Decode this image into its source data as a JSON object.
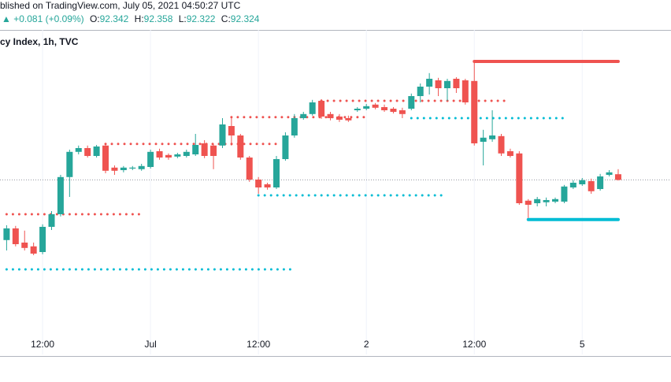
{
  "header": {
    "source": "blished on TradingView.com, July 05, 2021 04:50:27 UTC",
    "change": "▲ +0.081 (+0.09%)",
    "ohlc": [
      {
        "label": "O:",
        "value": "92.342"
      },
      {
        "label": "H:",
        "value": "92.358"
      },
      {
        "label": "L:",
        "value": "92.322"
      },
      {
        "label": "C:",
        "value": "92.324"
      }
    ]
  },
  "chart_data": {
    "type": "candlestick",
    "title": "cy Index, 1h, TVC",
    "up_color": "#26a69a",
    "down_color": "#ef5350",
    "ylim": [
      91.77,
      92.8
    ],
    "categories": [
      null,
      null,
      null,
      null,
      "12:00",
      null,
      null,
      null,
      null,
      null,
      null,
      null,
      null,
      null,
      null,
      null,
      "Jul",
      null,
      null,
      null,
      null,
      null,
      null,
      null,
      null,
      null,
      null,
      null,
      "12:00",
      null,
      null,
      null,
      null,
      null,
      null,
      null,
      null,
      null,
      null,
      null,
      "2",
      null,
      null,
      null,
      null,
      null,
      null,
      null,
      null,
      null,
      null,
      null,
      "12:00",
      null,
      null,
      null,
      null,
      null,
      null,
      null,
      null,
      null,
      null,
      null,
      "5",
      null,
      null,
      null,
      null
    ],
    "open": [
      92.133,
      92.17,
      92.125,
      92.113,
      92.095,
      92.175,
      92.215,
      92.333,
      92.413,
      92.425,
      92.4,
      92.433,
      92.363,
      92.355,
      92.36,
      92.358,
      92.365,
      92.415,
      92.403,
      92.398,
      92.4,
      92.405,
      92.44,
      92.433,
      92.433,
      92.495,
      92.465,
      92.395,
      92.325,
      92.31,
      92.3,
      92.39,
      92.465,
      92.52,
      92.533,
      92.575,
      92.533,
      92.525,
      92.52,
      92.545,
      92.55,
      92.563,
      92.555,
      92.55,
      92.545,
      92.55,
      92.59,
      92.62,
      92.64,
      92.615,
      92.645,
      92.64,
      92.638,
      92.445,
      92.453,
      92.463,
      92.415,
      92.408,
      92.258,
      92.25,
      92.253,
      92.255,
      92.255,
      92.3,
      92.31,
      92.32,
      92.295,
      92.34,
      92.342
    ],
    "high": [
      92.18,
      92.178,
      92.163,
      92.125,
      92.183,
      92.225,
      92.34,
      92.42,
      92.433,
      92.433,
      92.435,
      92.44,
      92.37,
      92.368,
      92.368,
      92.375,
      92.42,
      92.423,
      92.408,
      92.41,
      92.42,
      92.47,
      92.45,
      92.438,
      92.52,
      92.525,
      92.47,
      92.4,
      92.333,
      92.315,
      92.4,
      92.475,
      92.533,
      92.54,
      92.578,
      92.58,
      92.54,
      92.533,
      92.528,
      92.555,
      92.565,
      92.568,
      92.563,
      92.555,
      92.553,
      92.598,
      92.63,
      92.663,
      92.648,
      92.645,
      92.65,
      92.645,
      92.7,
      92.483,
      92.545,
      92.47,
      92.423,
      92.415,
      92.263,
      92.27,
      92.268,
      92.268,
      92.308,
      92.323,
      92.33,
      92.328,
      92.343,
      92.355,
      92.358
    ],
    "low": [
      92.1,
      92.113,
      92.1,
      92.085,
      92.088,
      92.165,
      92.208,
      92.27,
      92.405,
      92.395,
      92.395,
      92.345,
      92.34,
      92.348,
      92.355,
      92.353,
      92.36,
      92.388,
      92.388,
      92.393,
      92.395,
      92.4,
      92.393,
      92.358,
      92.425,
      92.433,
      92.388,
      92.318,
      92.28,
      92.293,
      92.295,
      92.385,
      92.458,
      92.515,
      92.528,
      92.518,
      92.513,
      92.508,
      92.508,
      92.54,
      92.545,
      92.548,
      92.54,
      92.535,
      92.52,
      92.545,
      92.57,
      92.595,
      92.59,
      92.575,
      92.6,
      92.563,
      92.433,
      92.37,
      92.445,
      92.4,
      92.395,
      92.245,
      92.203,
      92.24,
      92.24,
      92.25,
      92.25,
      92.295,
      92.305,
      92.28,
      92.29,
      92.335,
      92.322
    ],
    "close": [
      92.17,
      92.12,
      92.108,
      92.09,
      92.175,
      92.215,
      92.333,
      92.413,
      92.425,
      92.4,
      92.43,
      92.353,
      92.353,
      92.363,
      92.363,
      92.368,
      92.413,
      92.395,
      92.395,
      92.405,
      92.413,
      92.435,
      92.4,
      92.4,
      92.5,
      92.465,
      92.395,
      92.325,
      92.3,
      92.3,
      92.39,
      92.465,
      92.52,
      92.533,
      92.57,
      92.525,
      92.52,
      92.515,
      92.513,
      92.55,
      92.558,
      92.553,
      92.545,
      92.54,
      92.533,
      92.59,
      92.62,
      92.645,
      92.615,
      92.638,
      92.615,
      92.57,
      92.44,
      92.458,
      92.465,
      92.408,
      92.4,
      92.25,
      92.245,
      92.263,
      92.26,
      92.263,
      92.303,
      92.315,
      92.323,
      92.288,
      92.335,
      92.348,
      92.324
    ],
    "levels": [
      {
        "value": 92.215,
        "color": "#ef5350",
        "style": "dotted",
        "start": 0,
        "end": 15
      },
      {
        "value": 92.04,
        "color": "#00bcd4",
        "style": "dotted",
        "start": 0,
        "end": 32
      },
      {
        "value": 92.438,
        "color": "#ef5350",
        "style": "dotted",
        "start": 11,
        "end": 30
      },
      {
        "value": 92.523,
        "color": "#ef5350",
        "style": "dotted",
        "start": 25,
        "end": 40
      },
      {
        "value": 92.275,
        "color": "#00bcd4",
        "style": "dotted",
        "start": 28,
        "end": 49
      },
      {
        "value": 92.575,
        "color": "#ef5350",
        "style": "dotted",
        "start": 35,
        "end": 56
      },
      {
        "value": 92.52,
        "color": "#00bcd4",
        "style": "dotted",
        "start": 45,
        "end": 62
      },
      {
        "value": 92.7,
        "color": "#ef5350",
        "style": "solid",
        "start": 52,
        "end": 68
      },
      {
        "value": 92.198,
        "color": "#00bcd4",
        "style": "solid",
        "start": 58,
        "end": 68
      }
    ]
  }
}
